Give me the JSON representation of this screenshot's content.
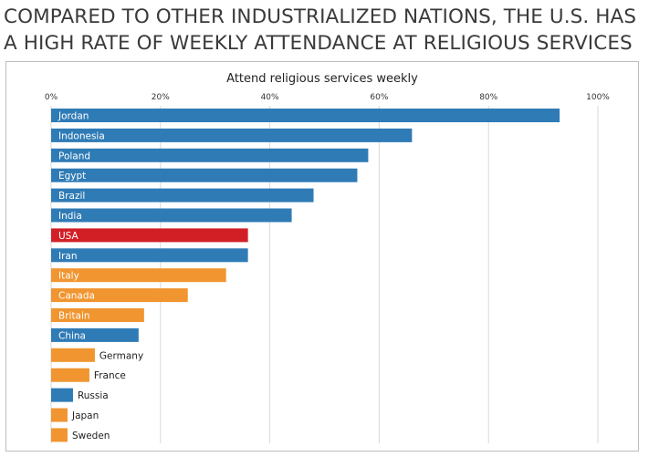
{
  "headline": {
    "line1": "COMPARED TO OTHER INDUSTRIALIZED NATIONS, THE U.S. HAS",
    "line2": "A HIGH RATE OF WEEKLY ATTENDANCE AT RELIGIOUS SERVICES"
  },
  "colors": {
    "blue": "#2f7bb6",
    "red": "#d21f26",
    "orange": "#f0952f",
    "grid": "#d9d9d9",
    "label_inside": "#ffffff",
    "label_outside": "#222222"
  },
  "chart_data": {
    "type": "bar",
    "orientation": "horizontal",
    "title": "Attend religious services weekly",
    "xlabel": "",
    "ylabel": "",
    "xlim": [
      0,
      100
    ],
    "grid": true,
    "ticks": [
      0,
      20,
      40,
      60,
      80,
      100
    ],
    "tick_labels": [
      "0%",
      "20%",
      "40%",
      "60%",
      "80%",
      "100%"
    ],
    "categories": [
      "Jordan",
      "Indonesia",
      "Poland",
      "Egypt",
      "Brazil",
      "India",
      "USA",
      "Iran",
      "Italy",
      "Canada",
      "Britain",
      "China",
      "Germany",
      "France",
      "Russia",
      "Japan",
      "Sweden"
    ],
    "values": [
      93,
      66,
      58,
      56,
      48,
      44,
      36,
      36,
      32,
      25,
      17,
      16,
      8,
      7,
      4,
      3,
      3
    ],
    "color_groups": [
      "blue",
      "blue",
      "blue",
      "blue",
      "blue",
      "blue",
      "red",
      "blue",
      "orange",
      "orange",
      "orange",
      "blue",
      "orange",
      "orange",
      "blue",
      "orange",
      "orange"
    ]
  }
}
